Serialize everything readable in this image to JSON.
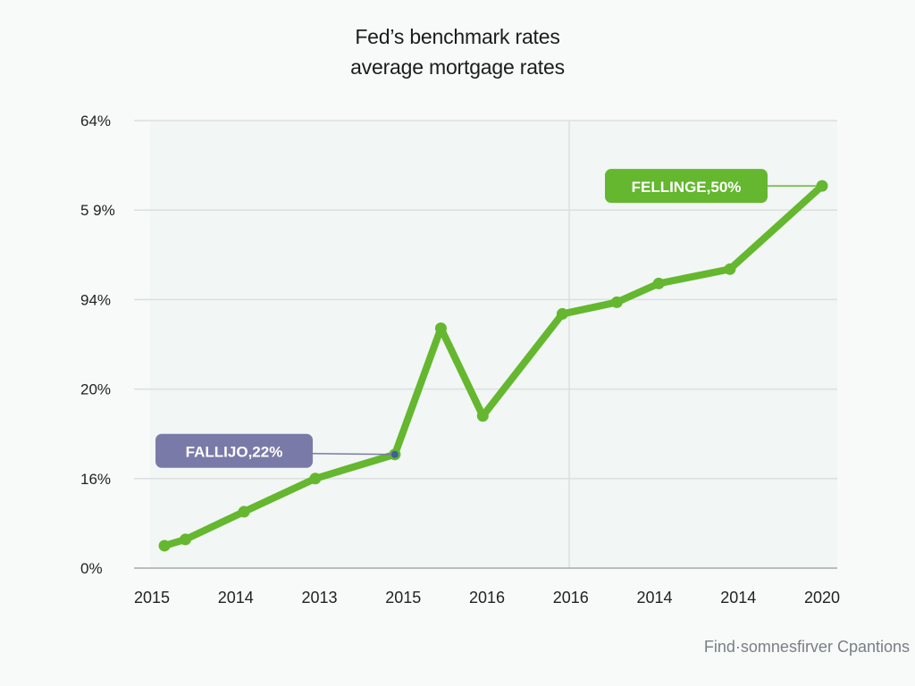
{
  "chart_data": {
    "type": "line",
    "title_lines": [
      "Fed’s benchmark rates",
      "average mortgage rates"
    ],
    "y_tick_labels": [
      "0%",
      "16%",
      "20%",
      "94%",
      "5 9%",
      "64%"
    ],
    "x_tick_labels": [
      "2015",
      "2014",
      "2013",
      "2015",
      "2016",
      "2016",
      "2014",
      "2014",
      "2020"
    ],
    "ylim": [
      0,
      5
    ],
    "grid": true,
    "series": [
      {
        "color": "#64b72f",
        "points": [
          [
            0.15,
            0.25
          ],
          [
            0.4,
            0.32
          ],
          [
            1.1,
            0.63
          ],
          [
            1.95,
            1.0
          ],
          [
            2.9,
            1.27
          ],
          [
            3.45,
            2.68
          ],
          [
            3.95,
            1.7
          ],
          [
            4.9,
            2.84
          ],
          [
            5.55,
            2.97
          ],
          [
            6.05,
            3.18
          ],
          [
            6.9,
            3.34
          ],
          [
            8.0,
            4.27
          ]
        ]
      }
    ],
    "annotations": [
      {
        "text": "FALLIJO,22%",
        "point_index": 4,
        "color": "#7a7aa8",
        "side": "left"
      },
      {
        "text": "FELLINGE,50%",
        "point_index": 11,
        "color": "#64b72f",
        "side": "left"
      }
    ],
    "source": "Find·somnesfirver Cpantions"
  }
}
